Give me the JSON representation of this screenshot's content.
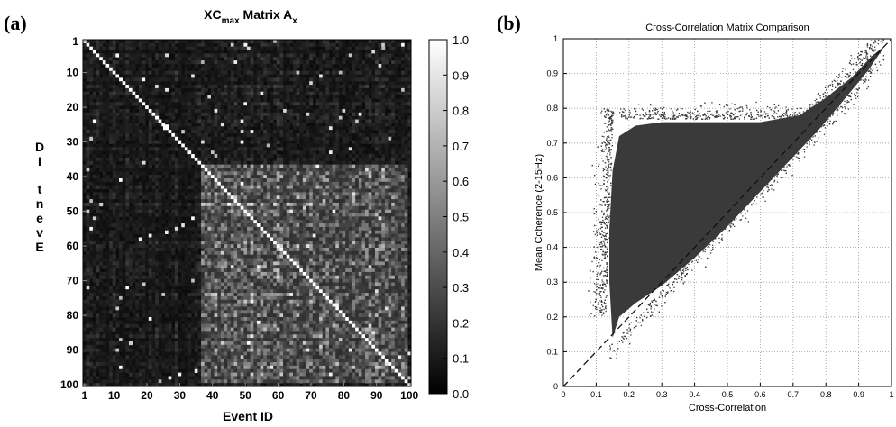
{
  "panel_a": {
    "label": "(a)",
    "title_main": "XC",
    "title_sub1": "max",
    "title_mid": " Matrix A",
    "title_sub2": "x",
    "xlabel": "Event ID",
    "ylabel": "Event ID",
    "ylabel_render": "DI tnevE",
    "colorbar_ticks": [
      "1.0",
      "0.9",
      "0.8",
      "0.7",
      "0.6",
      "0.5",
      "0.4",
      "0.3",
      "0.2",
      "0.1",
      "0.0"
    ]
  },
  "panel_b": {
    "label": "(b)",
    "title": "Cross-Correlation Matrix Comparison",
    "xlabel": "Cross-Correlation",
    "ylabel": "Mean Coherence (2-15Hz)"
  },
  "chart_data": [
    {
      "type": "heatmap",
      "title": "XCmax Matrix Ax",
      "xlabel": "Event ID",
      "ylabel": "Event ID",
      "size": 100,
      "x_ticks": [
        "1",
        "10",
        "20",
        "30",
        "40",
        "50",
        "60",
        "70",
        "80",
        "90",
        "100"
      ],
      "y_ticks": [
        "1",
        "10",
        "20",
        "30",
        "40",
        "50",
        "60",
        "70",
        "80",
        "90",
        "100"
      ],
      "colorbar_range": [
        0,
        1
      ],
      "diagonal_value": 1.0,
      "background_range": [
        0.05,
        0.3
      ],
      "bright_cluster_events": [
        37,
        99
      ],
      "cluster_range": [
        0.3,
        0.75
      ],
      "colormap": "gray"
    },
    {
      "type": "scatter",
      "title": "Cross-Correlation Matrix Comparison",
      "xlabel": "Cross-Correlation",
      "ylabel": "Mean Coherence (2-15Hz)",
      "xlim": [
        0,
        1
      ],
      "ylim": [
        0,
        1
      ],
      "x_ticks": [
        "0",
        "0.1",
        "0.2",
        "0.3",
        "0.4",
        "0.5",
        "0.6",
        "0.7",
        "0.8",
        "0.9",
        "1"
      ],
      "y_ticks": [
        "0",
        "0.1",
        "0.2",
        "0.3",
        "0.4",
        "0.5",
        "0.6",
        "0.7",
        "0.8",
        "0.9",
        "1"
      ],
      "grid": true,
      "reference_line": {
        "x": [
          0,
          1
        ],
        "y": [
          0,
          1
        ],
        "style": "dashed"
      },
      "point_color": "#3a3a3a",
      "description_bounds": {
        "core_x_range": [
          0.14,
          0.75
        ],
        "core_y_range": [
          0.2,
          0.78
        ],
        "upper_edge": [
          [
            0.14,
            0.64
          ],
          [
            0.17,
            0.75
          ],
          [
            0.22,
            0.8
          ],
          [
            0.5,
            0.8
          ],
          [
            0.7,
            0.81
          ],
          [
            0.8,
            0.85
          ],
          [
            0.9,
            0.92
          ],
          [
            0.98,
            0.99
          ]
        ]
      }
    }
  ]
}
